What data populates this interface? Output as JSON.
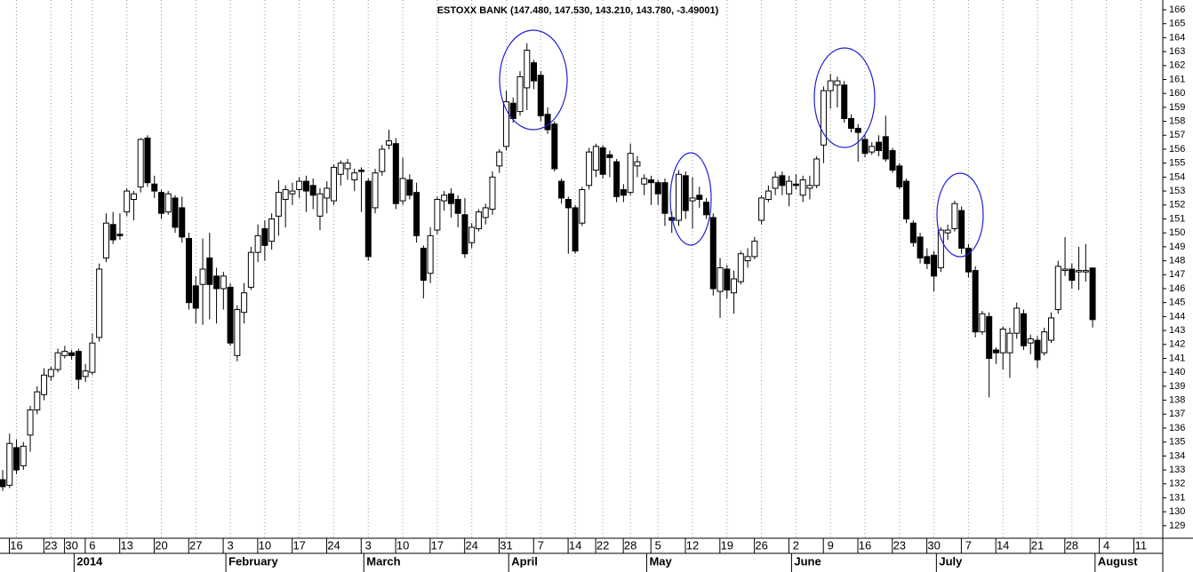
{
  "chart_data": {
    "type": "candlestick",
    "title": "ESTOXX BANK (147.480, 147.530, 143.210, 143.780, -3.49001)",
    "up_color": "#ffffff",
    "down_color": "#000000",
    "grid": true,
    "ylim": [
      128.1,
      166.7
    ],
    "yticks": [
      129,
      130,
      131,
      132,
      133,
      134,
      135,
      136,
      137,
      138,
      139,
      140,
      141,
      142,
      143,
      144,
      145,
      146,
      147,
      148,
      149,
      150,
      151,
      152,
      153,
      154,
      155,
      156,
      157,
      158,
      159,
      160,
      161,
      162,
      163,
      164,
      165,
      166
    ],
    "categories": [
      null,
      null,
      "16",
      null,
      null,
      null,
      null,
      "23",
      null,
      null,
      "30",
      null,
      null,
      "6",
      null,
      null,
      null,
      null,
      "13",
      null,
      null,
      null,
      null,
      "20",
      null,
      null,
      null,
      null,
      "27",
      null,
      null,
      null,
      null,
      "3",
      null,
      null,
      null,
      null,
      "10",
      null,
      null,
      null,
      null,
      "17",
      null,
      null,
      null,
      null,
      "24",
      null,
      null,
      null,
      null,
      "3",
      null,
      null,
      null,
      null,
      "10",
      null,
      null,
      null,
      null,
      "17",
      null,
      null,
      null,
      null,
      "24",
      null,
      null,
      null,
      null,
      "31",
      null,
      null,
      null,
      null,
      "7",
      null,
      null,
      null,
      null,
      "14",
      null,
      null,
      null,
      "22",
      null,
      null,
      null,
      "28",
      null,
      null,
      null,
      "5",
      null,
      null,
      null,
      null,
      "12",
      null,
      null,
      null,
      null,
      "19",
      null,
      null,
      null,
      null,
      "26",
      null,
      null,
      null,
      null,
      "2",
      null,
      null,
      null,
      null,
      "9",
      null,
      null,
      null,
      null,
      "16",
      null,
      null,
      null,
      null,
      "23",
      null,
      null,
      null,
      null,
      "30",
      null,
      null,
      null,
      null,
      "7",
      null,
      null,
      null,
      null,
      "14",
      null,
      null,
      null,
      null,
      "21",
      null,
      null,
      null,
      null,
      "28",
      null,
      null,
      null,
      null,
      "4",
      null,
      null,
      null,
      null,
      "11",
      null,
      null
    ],
    "months": [
      {
        "label": "2014",
        "start": 11
      },
      {
        "label": "February",
        "start": 33
      },
      {
        "label": "March",
        "start": 53
      },
      {
        "label": "April",
        "start": 74
      },
      {
        "label": "May",
        "start": 94
      },
      {
        "label": "June",
        "start": 115
      },
      {
        "label": "July",
        "start": 136
      },
      {
        "label": "August",
        "start": 159
      }
    ],
    "ohlc": [
      [
        132.3,
        133,
        131.5,
        131.8
      ],
      [
        131.9,
        135.6,
        131.7,
        134.9
      ],
      [
        134.6,
        135.2,
        132.7,
        133.0
      ],
      [
        133.3,
        135,
        133,
        134.7
      ],
      [
        135.5,
        137.6,
        134.3,
        137.3
      ],
      [
        137.3,
        139,
        137,
        138.6
      ],
      [
        138.4,
        140.3,
        138,
        139.8
      ],
      [
        139.7,
        140.4,
        139.4,
        140.2
      ],
      [
        140.2,
        141.7,
        140,
        141.4
      ],
      [
        141.2,
        141.9,
        141,
        141.5
      ],
      [
        141.4,
        141.6,
        140.9,
        141.2
      ],
      [
        141.5,
        141.7,
        138.8,
        139.5
      ],
      [
        139.7,
        140.6,
        139.3,
        140.1
      ],
      [
        140,
        142.8,
        139.8,
        142.1
      ],
      [
        142.5,
        147.8,
        142.2,
        147.4
      ],
      [
        148.2,
        151.4,
        147.9,
        150.7
      ],
      [
        150.6,
        151.5,
        149.2,
        149.5
      ],
      [
        149.9,
        151.4,
        149.5,
        149.8
      ],
      [
        151.5,
        153.2,
        151.2,
        153
      ],
      [
        152.4,
        153,
        150.9,
        152.8
      ],
      [
        153.3,
        156.8,
        152.9,
        156.7
      ],
      [
        156.8,
        157,
        153.3,
        153.6
      ],
      [
        153.5,
        154.1,
        152.5,
        153
      ],
      [
        152.9,
        153.1,
        151,
        151.4
      ],
      [
        151.5,
        153,
        151.3,
        152.8
      ],
      [
        152.5,
        152.7,
        150,
        150.4
      ],
      [
        151.8,
        152.6,
        149.3,
        149.7
      ],
      [
        149.6,
        150,
        144.5,
        145
      ],
      [
        146.2,
        146.9,
        143.5,
        144.6
      ],
      [
        146.3,
        149.6,
        143.4,
        147.4
      ],
      [
        148.2,
        150,
        143.8,
        146.3
      ],
      [
        146.9,
        147.5,
        143.5,
        146
      ],
      [
        146,
        147.2,
        144.5,
        146.9
      ],
      [
        146.1,
        146.4,
        141.9,
        142.1
      ],
      [
        141.2,
        144.8,
        140.8,
        144.5
      ],
      [
        144.3,
        146.4,
        143.5,
        145.7
      ],
      [
        146.1,
        149,
        145.9,
        148.6
      ],
      [
        148.6,
        150.6,
        147.9,
        149.8
      ],
      [
        150.3,
        150.9,
        148,
        149.1
      ],
      [
        149.4,
        151.4,
        148.8,
        151
      ],
      [
        151.2,
        153.8,
        149.8,
        152.9
      ],
      [
        152.4,
        153.4,
        150.4,
        153.1
      ],
      [
        152.8,
        153.6,
        152,
        153
      ],
      [
        153.1,
        154,
        152.5,
        153.7
      ],
      [
        153.7,
        154.1,
        151.5,
        153
      ],
      [
        153.4,
        153.9,
        151.7,
        152.7
      ],
      [
        151.2,
        153.2,
        150.2,
        152.8
      ],
      [
        152.5,
        153.7,
        151.4,
        153.2
      ],
      [
        152.3,
        154.9,
        152,
        154.7
      ],
      [
        154.2,
        155.2,
        153.4,
        155
      ],
      [
        154.6,
        155.3,
        153.8,
        155
      ],
      [
        153.8,
        154.6,
        153,
        154.3
      ],
      [
        154.5,
        154.7,
        151.5,
        154.4
      ],
      [
        153.7,
        153.9,
        148,
        148.3
      ],
      [
        151.8,
        154.6,
        151.4,
        154.3
      ],
      [
        154.4,
        156.3,
        154.1,
        156
      ],
      [
        156.3,
        157.4,
        156,
        156.6
      ],
      [
        156.4,
        156.8,
        151.7,
        152.1
      ],
      [
        152.3,
        155.4,
        152,
        153.9
      ],
      [
        153.8,
        154.2,
        152.4,
        152.7
      ],
      [
        152.9,
        153.6,
        149.3,
        149.8
      ],
      [
        148.9,
        149.1,
        145.3,
        146.6
      ],
      [
        147.1,
        150.4,
        146.4,
        149.8
      ],
      [
        150.2,
        152.6,
        149.9,
        152.4
      ],
      [
        152.3,
        153,
        151.6,
        152.7
      ],
      [
        152.8,
        153.2,
        151.1,
        152.1
      ],
      [
        152.4,
        152.7,
        150.4,
        151.4
      ],
      [
        151.3,
        152.5,
        148.2,
        148.5
      ],
      [
        149.3,
        150.7,
        148.9,
        150.4
      ],
      [
        150.3,
        151.7,
        150.1,
        151.5
      ],
      [
        151.1,
        152.1,
        150.6,
        151.8
      ],
      [
        151.7,
        154.4,
        151.3,
        154
      ],
      [
        154.8,
        156,
        154.3,
        155.8
      ],
      [
        156.2,
        160.2,
        155.9,
        159.4
      ],
      [
        159.3,
        159.7,
        157.9,
        158.2
      ],
      [
        158.7,
        161.6,
        158.4,
        161.2
      ],
      [
        160.4,
        163.6,
        158.8,
        163.1
      ],
      [
        162.2,
        162.4,
        160.3,
        160.9
      ],
      [
        161.3,
        161.6,
        158,
        158.4
      ],
      [
        158.5,
        159,
        157.1,
        157.4
      ],
      [
        157.8,
        158,
        154.4,
        154.6
      ],
      [
        153.7,
        153.9,
        152.1,
        152.5
      ],
      [
        152.4,
        152.6,
        148.5,
        151.8
      ],
      [
        151.8,
        152,
        148.5,
        148.7
      ],
      [
        150.7,
        153.3,
        150.5,
        153.1
      ],
      [
        153.4,
        156.1,
        153.1,
        155.8
      ],
      [
        154.5,
        156.4,
        154,
        156.2
      ],
      [
        156.1,
        156.3,
        153.9,
        154.2
      ],
      [
        155.6,
        155.9,
        154,
        155.4
      ],
      [
        155.1,
        155.3,
        152.2,
        152.6
      ],
      [
        153.1,
        153.5,
        152.2,
        152.7
      ],
      [
        152.9,
        156.4,
        152.7,
        155.7
      ],
      [
        154.8,
        155.5,
        154,
        155.1
      ],
      [
        153.5,
        154.2,
        152.7,
        153.9
      ],
      [
        153.8,
        154.1,
        152,
        153.6
      ],
      [
        153.6,
        153.8,
        152,
        152.8
      ],
      [
        153.6,
        153.9,
        150.5,
        151.4
      ],
      [
        151.1,
        151.5,
        150,
        150.9
      ],
      [
        150.9,
        154.5,
        150.5,
        154.2
      ],
      [
        154.1,
        154.4,
        151,
        151.6
      ],
      [
        152.3,
        154,
        150.3,
        152.5
      ],
      [
        152.7,
        153.3,
        151.8,
        152.4
      ],
      [
        152.2,
        152.5,
        151,
        151.3
      ],
      [
        151.1,
        151.4,
        145.5,
        146
      ],
      [
        145.8,
        148.2,
        143.9,
        147.5
      ],
      [
        147.4,
        147.7,
        145.3,
        145.9
      ],
      [
        145.7,
        147.3,
        144.2,
        146.7
      ],
      [
        146.5,
        148.7,
        146.3,
        148.5
      ],
      [
        148,
        148.9,
        147.5,
        148.3
      ],
      [
        148.3,
        149.7,
        148.1,
        149.4
      ],
      [
        150.9,
        152.7,
        150.6,
        152.5
      ],
      [
        152.4,
        153.4,
        152.2,
        153
      ],
      [
        153.2,
        154.4,
        152.7,
        154
      ],
      [
        154.1,
        154.4,
        152.7,
        153.4
      ],
      [
        152.8,
        154.1,
        151.9,
        153.7
      ],
      [
        153.5,
        154.2,
        153.1,
        153.4
      ],
      [
        152.7,
        154.1,
        152.2,
        153.8
      ],
      [
        153.2,
        154.1,
        152.4,
        153.4
      ],
      [
        153.4,
        155.5,
        153.2,
        155.3
      ],
      [
        156.3,
        160.5,
        155,
        160.2
      ],
      [
        160.2,
        161.4,
        158.9,
        160.9
      ],
      [
        160.6,
        161.2,
        159,
        160.9
      ],
      [
        160.6,
        160.9,
        157.9,
        158.2
      ],
      [
        158.2,
        158.5,
        157.2,
        157.5
      ],
      [
        157.5,
        157.8,
        155.1,
        157.2
      ],
      [
        156.7,
        157,
        155.4,
        155.7
      ],
      [
        155.8,
        156.5,
        155.6,
        156.2
      ],
      [
        156.5,
        157,
        155.5,
        155.9
      ],
      [
        156.9,
        158.4,
        155.1,
        155.3
      ],
      [
        155.9,
        156.1,
        154.3,
        154.5
      ],
      [
        154.8,
        155,
        153.1,
        153.3
      ],
      [
        153.7,
        153.9,
        150.7,
        151
      ],
      [
        150.7,
        150.9,
        149,
        149.3
      ],
      [
        149.7,
        150,
        147.8,
        148.2
      ],
      [
        148.3,
        148.9,
        147.4,
        147.8
      ],
      [
        148.4,
        148.7,
        145.8,
        146.9
      ],
      [
        147.5,
        150.4,
        147.2,
        150.2
      ],
      [
        150,
        150.6,
        149.5,
        150.2
      ],
      [
        150.3,
        152.3,
        150.1,
        152.1
      ],
      [
        151.6,
        151.9,
        148.5,
        148.9
      ],
      [
        148.9,
        149.2,
        146.8,
        147.2
      ],
      [
        147.3,
        147.6,
        142.5,
        142.9
      ],
      [
        142.9,
        144.4,
        142.7,
        144.2
      ],
      [
        144,
        144.3,
        138.2,
        141
      ],
      [
        141.6,
        141.8,
        140.6,
        141.4
      ],
      [
        141.4,
        143.3,
        140.2,
        143.1
      ],
      [
        141.4,
        143.2,
        139.6,
        142.8
      ],
      [
        142.8,
        145,
        142.4,
        144.6
      ],
      [
        144.2,
        144.5,
        141.6,
        141.9
      ],
      [
        142.1,
        142.7,
        141.3,
        142.4
      ],
      [
        142.3,
        142.6,
        140.3,
        140.9
      ],
      [
        141.4,
        143.2,
        141.2,
        142.9
      ],
      [
        142.3,
        144.3,
        142.1,
        143.9
      ],
      [
        144.5,
        148,
        144.2,
        147.6
      ],
      [
        147.3,
        149.7,
        146.9,
        147.4
      ],
      [
        147.4,
        147.8,
        146,
        146.6
      ],
      [
        147.2,
        149,
        145.9,
        147.3
      ],
      [
        147.2,
        149.2,
        146.5,
        147.3
      ],
      [
        147.48,
        147.53,
        143.21,
        143.78
      ],
      null,
      null,
      null,
      null,
      null,
      null,
      null,
      null,
      null
    ]
  }
}
